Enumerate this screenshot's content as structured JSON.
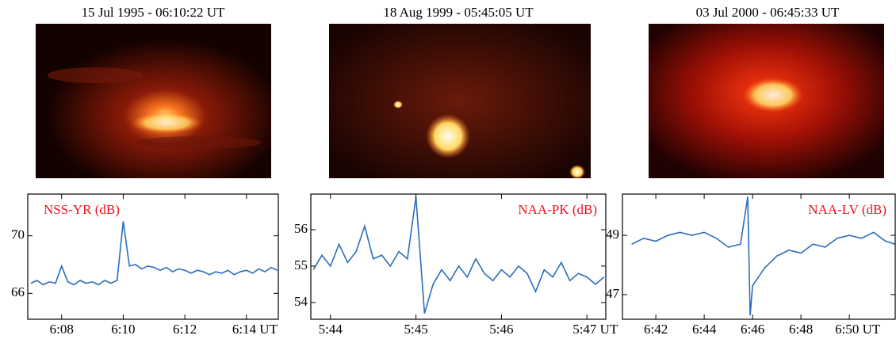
{
  "images": [
    {
      "caption": "15 Jul 1995 - 06:10:22 UT"
    },
    {
      "caption": "18 Aug 1999 - 05:45:05 UT"
    },
    {
      "caption": "03 Jul 2000 - 06:45:33 UT"
    }
  ],
  "chart_data": [
    {
      "type": "line",
      "legend": "upper left",
      "x": [
        367.0,
        367.2,
        367.4,
        367.6,
        367.8,
        368.0,
        368.2,
        368.4,
        368.6,
        368.8,
        369.0,
        369.2,
        369.4,
        369.6,
        369.8,
        370.0,
        370.2,
        370.4,
        370.6,
        370.8,
        371.0,
        371.2,
        371.4,
        371.6,
        371.8,
        372.0,
        372.2,
        372.4,
        372.6,
        372.8,
        373.0,
        373.2,
        373.4,
        373.6,
        373.8,
        374.0,
        374.2,
        374.4,
        374.6,
        374.8,
        375.0
      ],
      "series": [
        {
          "name": "NSS-YR (dB)",
          "color": "#2a6ebb",
          "label_color": "#e8141c",
          "values": [
            66.7,
            66.9,
            66.6,
            66.8,
            66.7,
            67.9,
            66.8,
            66.6,
            66.9,
            66.7,
            66.8,
            66.6,
            66.9,
            66.7,
            66.9,
            71.0,
            67.9,
            68.0,
            67.7,
            67.9,
            67.8,
            67.6,
            67.8,
            67.5,
            67.7,
            67.6,
            67.4,
            67.6,
            67.5,
            67.3,
            67.5,
            67.4,
            67.6,
            67.3,
            67.5,
            67.6,
            67.4,
            67.7,
            67.5,
            67.8,
            67.6
          ]
        }
      ],
      "xlim": [
        366.9,
        375.06
      ],
      "ylim": [
        64.2,
        72.9
      ],
      "xticks": [
        {
          "value": 368,
          "label": "6:08"
        },
        {
          "value": 370,
          "label": "6:10"
        },
        {
          "value": 372,
          "label": "6:12"
        },
        {
          "value": 374,
          "label": "6:14 UT"
        }
      ],
      "yticks": [
        66,
        70
      ]
    },
    {
      "type": "line",
      "legend": "upper right",
      "x": [
        343.8,
        343.9,
        344.0,
        344.1,
        344.2,
        344.3,
        344.4,
        344.5,
        344.6,
        344.7,
        344.8,
        344.9,
        345.0,
        345.1,
        345.2,
        345.3,
        345.4,
        345.5,
        345.6,
        345.7,
        345.8,
        345.9,
        346.0,
        346.1,
        346.2,
        346.3,
        346.4,
        346.5,
        346.6,
        346.7,
        346.8,
        346.9,
        347.0,
        347.1,
        347.2
      ],
      "series": [
        {
          "name": "NAA-PK (dB)",
          "color": "#2a6ebb",
          "label_color": "#e8141c",
          "values": [
            54.9,
            55.3,
            55.0,
            55.6,
            55.1,
            55.4,
            56.1,
            55.2,
            55.3,
            55.0,
            55.4,
            55.2,
            56.9,
            53.7,
            54.5,
            54.9,
            54.6,
            55.0,
            54.7,
            55.2,
            54.8,
            54.6,
            54.9,
            54.7,
            55.0,
            54.8,
            54.3,
            54.9,
            54.7,
            55.1,
            54.6,
            54.8,
            54.7,
            54.5,
            54.7
          ]
        }
      ],
      "xlim": [
        343.77,
        347.23
      ],
      "ylim": [
        53.54,
        56.98
      ],
      "xticks": [
        {
          "value": 344,
          "label": "5:44"
        },
        {
          "value": 345,
          "label": "5:45"
        },
        {
          "value": 346,
          "label": "5:46"
        },
        {
          "value": 347,
          "label": "5:47 UT"
        }
      ],
      "yticks": [
        54,
        55,
        56
      ]
    },
    {
      "type": "line",
      "legend": "upper right",
      "x": [
        401.0,
        401.5,
        402.0,
        402.5,
        403.0,
        403.5,
        404.0,
        404.5,
        405.0,
        405.5,
        405.8,
        405.9,
        406.0,
        406.5,
        407.0,
        407.5,
        408.0,
        408.5,
        409.0,
        409.5,
        410.0,
        410.5,
        411.0,
        411.5,
        411.9
      ],
      "series": [
        {
          "name": "NAA-LV (dB)",
          "color": "#2a6ebb",
          "label_color": "#e8141c",
          "values": [
            48.7,
            48.9,
            48.8,
            49.0,
            49.1,
            49.0,
            49.1,
            48.9,
            48.6,
            48.7,
            50.3,
            46.3,
            47.3,
            47.9,
            48.3,
            48.5,
            48.4,
            48.7,
            48.6,
            48.9,
            49.0,
            48.9,
            49.1,
            48.8,
            48.7
          ]
        }
      ],
      "xlim": [
        400.62,
        411.93
      ],
      "ylim": [
        46.17,
        50.39
      ],
      "xticks": [
        {
          "value": 402,
          "label": "6:42"
        },
        {
          "value": 404,
          "label": "6:44"
        },
        {
          "value": 406,
          "label": "6:46"
        },
        {
          "value": 408,
          "label": "6:48"
        },
        {
          "value": 410,
          "label": "6:50 UT"
        }
      ],
      "yticks": [
        47,
        49
      ]
    }
  ]
}
